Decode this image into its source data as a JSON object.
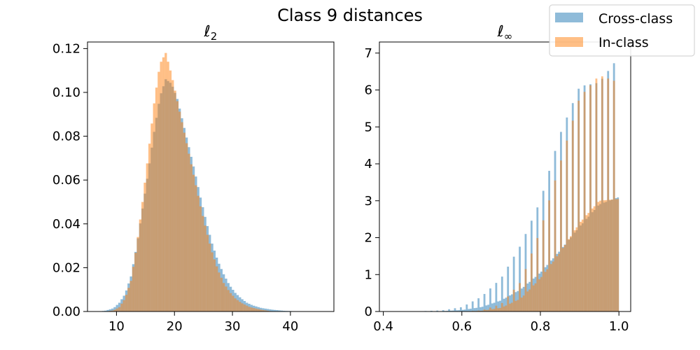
{
  "figure": {
    "title": "Class 9 distances"
  },
  "legend": {
    "placement": "top-right",
    "entries": [
      {
        "label": "Cross-class",
        "color": "#1f77b4",
        "alpha": 0.5
      },
      {
        "label": "In-class",
        "color": "#ff7f0e",
        "alpha": 0.5
      }
    ]
  },
  "chart_data": [
    {
      "type": "histogram",
      "title": "ℓ2",
      "title_main": "ℓ",
      "title_sub": "2",
      "xlim": [
        5,
        47.5
      ],
      "ylim": [
        0,
        0.123
      ],
      "xticks": [
        10,
        20,
        30,
        40
      ],
      "xtick_labels": [
        "10",
        "20",
        "30",
        "40"
      ],
      "yticks": [
        0,
        0.02,
        0.04,
        0.06,
        0.08,
        0.1,
        0.12
      ],
      "ytick_labels": [
        "0.00",
        "0.02",
        "0.04",
        "0.06",
        "0.08",
        "0.10",
        "0.12"
      ],
      "series": [
        {
          "name": "Cross-class",
          "curve": {
            "x": [
              6.5,
              8,
              9.5,
              10.5,
              11.5,
              12.5,
              13.5,
              14.5,
              15.5,
              16.5,
              17.5,
              18.5,
              19.5,
              20.5,
              21.5,
              22.5,
              23.5,
              24.5,
              25.5,
              26.5,
              27.5,
              28.5,
              29.5,
              30.5,
              31.5,
              32.5,
              33.5,
              35,
              37,
              39,
              41,
              43,
              45
            ],
            "y": [
              0,
              0.0003,
              0.0015,
              0.004,
              0.008,
              0.016,
              0.03,
              0.047,
              0.064,
              0.082,
              0.098,
              0.106,
              0.104,
              0.097,
              0.086,
              0.075,
              0.064,
              0.052,
              0.041,
              0.031,
              0.023,
              0.017,
              0.012,
              0.0085,
              0.006,
              0.004,
              0.0028,
              0.0016,
              0.0008,
              0.0003,
              0.0001,
              3e-05,
              0
            ]
          }
        },
        {
          "name": "In-class",
          "curve": {
            "x": [
              8,
              9.5,
              10.5,
              11.5,
              12.5,
              13.5,
              14.5,
              15.5,
              16.5,
              17.5,
              18.5,
              19.5,
              20.5,
              21.5,
              22.5,
              23.5,
              24.5,
              25.5,
              26.5,
              27.5,
              28.5,
              29.5,
              30.5,
              31.5,
              33,
              35,
              37
            ],
            "y": [
              0,
              0.0005,
              0.002,
              0.006,
              0.014,
              0.03,
              0.05,
              0.072,
              0.095,
              0.113,
              0.118,
              0.108,
              0.096,
              0.084,
              0.072,
              0.06,
              0.048,
              0.037,
              0.027,
              0.019,
              0.013,
              0.009,
              0.006,
              0.004,
              0.002,
              0.0008,
              0
            ]
          }
        }
      ]
    },
    {
      "type": "histogram",
      "title": "ℓ∞",
      "title_main": "ℓ",
      "title_sub": "∞",
      "xlim": [
        0.39,
        1.03
      ],
      "ylim": [
        0,
        7.3
      ],
      "xticks": [
        0.4,
        0.6,
        0.8,
        1.0
      ],
      "xtick_labels": [
        "0.4",
        "0.6",
        "0.8",
        "1.0"
      ],
      "yticks": [
        0,
        1,
        2,
        3,
        4,
        5,
        6,
        7
      ],
      "ytick_labels": [
        "0",
        "1",
        "2",
        "3",
        "4",
        "5",
        "6",
        "7"
      ],
      "series": [
        {
          "name": "Cross-class",
          "curve": {
            "x": [
              0.4,
              0.5,
              0.55,
              0.6,
              0.65,
              0.7,
              0.75,
              0.8,
              0.85,
              0.9,
              0.95,
              1.0
            ],
            "y": [
              0,
              0.005,
              0.01,
              0.04,
              0.12,
              0.3,
              0.6,
              1.05,
              1.65,
              2.3,
              2.9,
              3.1
            ]
          },
          "spike_curve": {
            "x": [
              0.4,
              0.5,
              0.55,
              0.6,
              0.65,
              0.7,
              0.75,
              0.8,
              0.85,
              0.9,
              0.95,
              1.0
            ],
            "y": [
              0,
              0.01,
              0.03,
              0.12,
              0.4,
              0.9,
              1.8,
              3.0,
              4.8,
              6.1,
              6.2,
              6.9
            ]
          }
        },
        {
          "name": "In-class",
          "curve": {
            "x": [
              0.4,
              0.6,
              0.65,
              0.7,
              0.75,
              0.8,
              0.85,
              0.9,
              0.95,
              1.0
            ],
            "y": [
              0,
              0,
              0.02,
              0.1,
              0.35,
              0.9,
              1.6,
              2.4,
              3.0,
              3.05
            ]
          },
          "spike_curve": {
            "x": [
              0.4,
              0.6,
              0.65,
              0.7,
              0.75,
              0.8,
              0.85,
              0.9,
              0.95,
              1.0
            ],
            "y": [
              0,
              0,
              0.03,
              0.2,
              0.8,
              2.2,
              4.0,
              5.8,
              6.4,
              6.2
            ]
          }
        }
      ]
    }
  ]
}
